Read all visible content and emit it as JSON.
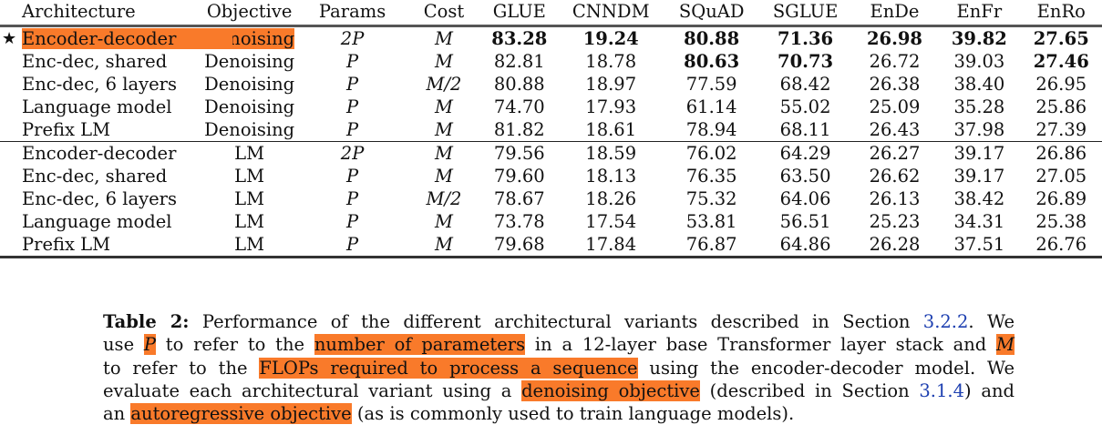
{
  "table": {
    "headers": [
      "Architecture",
      "Objective",
      "Params",
      "Cost",
      "GLUE",
      "CNNDM",
      "SQuAD",
      "SGLUE",
      "EnDe",
      "EnFr",
      "EnRo"
    ],
    "groups": [
      {
        "rows": [
          {
            "marker": "★",
            "highlighted": true,
            "arch": "Encoder-decoder",
            "objective": "Denoising",
            "params": "2P",
            "cost": "M",
            "values": [
              "83.28",
              "19.24",
              "80.88",
              "71.36",
              "26.98",
              "39.82",
              "27.65"
            ],
            "bold": [
              true,
              true,
              true,
              true,
              true,
              true,
              true
            ]
          },
          {
            "arch": "Enc-dec, shared",
            "objective": "Denoising",
            "params": "P",
            "cost": "M",
            "values": [
              "82.81",
              "18.78",
              "80.63",
              "70.73",
              "26.72",
              "39.03",
              "27.46"
            ],
            "bold": [
              false,
              false,
              true,
              true,
              false,
              false,
              true
            ]
          },
          {
            "arch": "Enc-dec, 6 layers",
            "objective": "Denoising",
            "params": "P",
            "cost": "M/2",
            "values": [
              "80.88",
              "18.97",
              "77.59",
              "68.42",
              "26.38",
              "38.40",
              "26.95"
            ]
          },
          {
            "arch": "Language model",
            "objective": "Denoising",
            "params": "P",
            "cost": "M",
            "values": [
              "74.70",
              "17.93",
              "61.14",
              "55.02",
              "25.09",
              "35.28",
              "25.86"
            ]
          },
          {
            "arch": "Prefix LM",
            "objective": "Denoising",
            "params": "P",
            "cost": "M",
            "values": [
              "81.82",
              "18.61",
              "78.94",
              "68.11",
              "26.43",
              "37.98",
              "27.39"
            ]
          }
        ]
      },
      {
        "rows": [
          {
            "arch": "Encoder-decoder",
            "objective": "LM",
            "params": "2P",
            "cost": "M",
            "values": [
              "79.56",
              "18.59",
              "76.02",
              "64.29",
              "26.27",
              "39.17",
              "26.86"
            ]
          },
          {
            "arch": "Enc-dec, shared",
            "objective": "LM",
            "params": "P",
            "cost": "M",
            "values": [
              "79.60",
              "18.13",
              "76.35",
              "63.50",
              "26.62",
              "39.17",
              "27.05"
            ]
          },
          {
            "arch": "Enc-dec, 6 layers",
            "objective": "LM",
            "params": "P",
            "cost": "M/2",
            "values": [
              "78.67",
              "18.26",
              "75.32",
              "64.06",
              "26.13",
              "38.42",
              "26.89"
            ]
          },
          {
            "arch": "Language model",
            "objective": "LM",
            "params": "P",
            "cost": "M",
            "values": [
              "73.78",
              "17.54",
              "53.81",
              "56.51",
              "25.23",
              "34.31",
              "25.38"
            ]
          },
          {
            "arch": "Prefix LM",
            "objective": "LM",
            "params": "P",
            "cost": "M",
            "values": [
              "79.68",
              "17.84",
              "76.87",
              "64.86",
              "26.28",
              "37.51",
              "26.76"
            ]
          }
        ]
      }
    ]
  },
  "caption": {
    "label": "Table 2:",
    "l1": " Performance of the different architectural variants described in Section ",
    "ref1": "3.2.2",
    "l1b": ". We",
    "l2a": "use ",
    "P": "P",
    "l2b": " to refer to the ",
    "hl1": "number of parameters",
    "l2c": " in a 12-layer base Transformer layer stack and ",
    "M": "M",
    "l3a": "to refer to the ",
    "hl2": "FLOPs required to process a sequence",
    "l3b": " using the encoder-decoder model. We",
    "l4a": "evaluate each architectural variant using a ",
    "hl3": "denoising objective",
    "l4b": " (described in Section ",
    "ref2": "3.1.4",
    "l4c": ") and",
    "l5a": "an ",
    "hl4": "autoregressive objective",
    "l5b": " (as is commonly used to train language models)."
  },
  "colors": {
    "highlight": "#f97a2a",
    "link": "#1d3fb0"
  }
}
